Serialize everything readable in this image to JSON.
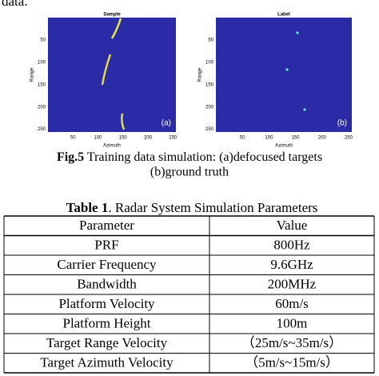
{
  "top_text": "data.",
  "figure": {
    "panels": [
      {
        "title": "Sample",
        "ylabel": "Range",
        "xlabel": "Azimuth",
        "tag": "(a)",
        "yticks": [
          50,
          100,
          150,
          200,
          250
        ],
        "xticks": [
          50,
          100,
          150,
          200,
          250
        ]
      },
      {
        "title": "Label",
        "ylabel": "Range",
        "xlabel": "Azimuth",
        "tag": "(b)",
        "yticks": [
          50,
          100,
          150,
          200,
          250
        ],
        "xticks": [
          50,
          100,
          150,
          200,
          250
        ]
      }
    ]
  },
  "caption": {
    "label": "Fig.5",
    "line1": " Training data simulation: (a)defocused targets",
    "line2": "(b)ground truth"
  },
  "table": {
    "label": "Table 1",
    "title": ". Radar System Simulation Parameters",
    "header": [
      "Parameter",
      "Value"
    ],
    "rows": [
      [
        "PRF",
        "800Hz"
      ],
      [
        "Carrier Frequency",
        "9.6GHz"
      ],
      [
        "Bandwidth",
        "200MHz"
      ],
      [
        "Platform Velocity",
        "60m/s"
      ],
      [
        "Platform Height",
        "100m"
      ],
      [
        "Target Range Velocity",
        "（25m/s~35m/s）"
      ],
      [
        "Target Azimuth Velocity",
        "（5m/s~15m/s）"
      ]
    ]
  }
}
